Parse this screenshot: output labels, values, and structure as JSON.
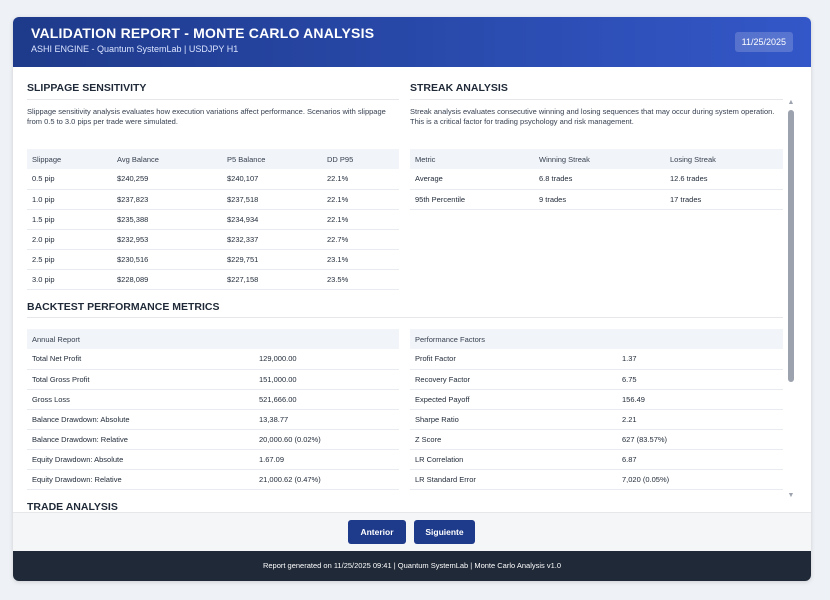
{
  "header": {
    "title": "VALIDATION REPORT - MONTE CARLO ANALYSIS",
    "subtitle": "ASHI ENGINE - Quantum SystemLab | USDJPY H1",
    "date": "11/25/2025"
  },
  "slippage": {
    "title": "SLIPPAGE SENSITIVITY",
    "description": "Slippage sensitivity analysis evaluates how execution variations affect performance. Scenarios with slippage from 0.5 to 3.0 pips per trade were simulated.",
    "columns": [
      "Slippage",
      "Avg Balance",
      "P5 Balance",
      "DD P95"
    ],
    "rows": [
      [
        "0.5 pip",
        "$240,259",
        "$240,107",
        "22.1%"
      ],
      [
        "1.0 pip",
        "$237,823",
        "$237,518",
        "22.1%"
      ],
      [
        "1.5 pip",
        "$235,388",
        "$234,934",
        "22.1%"
      ],
      [
        "2.0 pip",
        "$232,953",
        "$232,337",
        "22.7%"
      ],
      [
        "2.5 pip",
        "$230,516",
        "$229,751",
        "23.1%"
      ],
      [
        "3.0 pip",
        "$228,089",
        "$227,158",
        "23.5%"
      ]
    ]
  },
  "streak": {
    "title": "STREAK ANALYSIS",
    "description": "Streak analysis evaluates consecutive winning and losing sequences that may occur during system operation. This is a critical factor for trading psychology and risk management.",
    "columns": [
      "Metric",
      "Winning Streak",
      "Losing Streak"
    ],
    "rows": [
      [
        "Average",
        "6.8 trades",
        "12.6 trades"
      ],
      [
        "95th Percentile",
        "9 trades",
        "17 trades"
      ]
    ]
  },
  "backtest": {
    "title": "BACKTEST PERFORMANCE METRICS",
    "annual": {
      "header": "Annual Report",
      "rows": [
        [
          "Total Net Profit",
          "129,000.00"
        ],
        [
          "Total Gross Profit",
          "151,000.00"
        ],
        [
          "Gross Loss",
          "521,666.00"
        ],
        [
          "Balance Drawdown: Absolute",
          "13,38.77"
        ],
        [
          "Balance Drawdown: Relative",
          "20,000.60 (0.02%)"
        ],
        [
          "Equity Drawdown: Absolute",
          "1.67.09"
        ],
        [
          "Equity Drawdown: Relative",
          "21,000.62 (0.47%)"
        ]
      ]
    },
    "factors": {
      "header": "Performance Factors",
      "rows": [
        [
          "Profit Factor",
          "1.37"
        ],
        [
          "Recovery Factor",
          "6.75"
        ],
        [
          "Expected Payoff",
          "156.49"
        ],
        [
          "Sharpe Ratio",
          "2.21"
        ],
        [
          "Z Score",
          "627 (83.57%)"
        ],
        [
          "LR Correlation",
          "6.87"
        ],
        [
          "LR Standard Error",
          "7,020 (0.05%)"
        ]
      ]
    }
  },
  "trade_analysis": {
    "title": "TRADE ANALYSIS"
  },
  "scrollbar": {
    "up_glyph": "▲",
    "down_glyph": "▼"
  },
  "nav": {
    "prev_label": "Anterior",
    "next_label": "Siguiente"
  },
  "footer": {
    "text": "Report generated on 11/25/2025 09:41 | Quantum SystemLab | Monte Carlo Analysis v1.0"
  },
  "colors": {
    "accent": "#1e3a8a",
    "header_gradient_end": "#3357c8",
    "footer_bg": "#1f2937"
  }
}
